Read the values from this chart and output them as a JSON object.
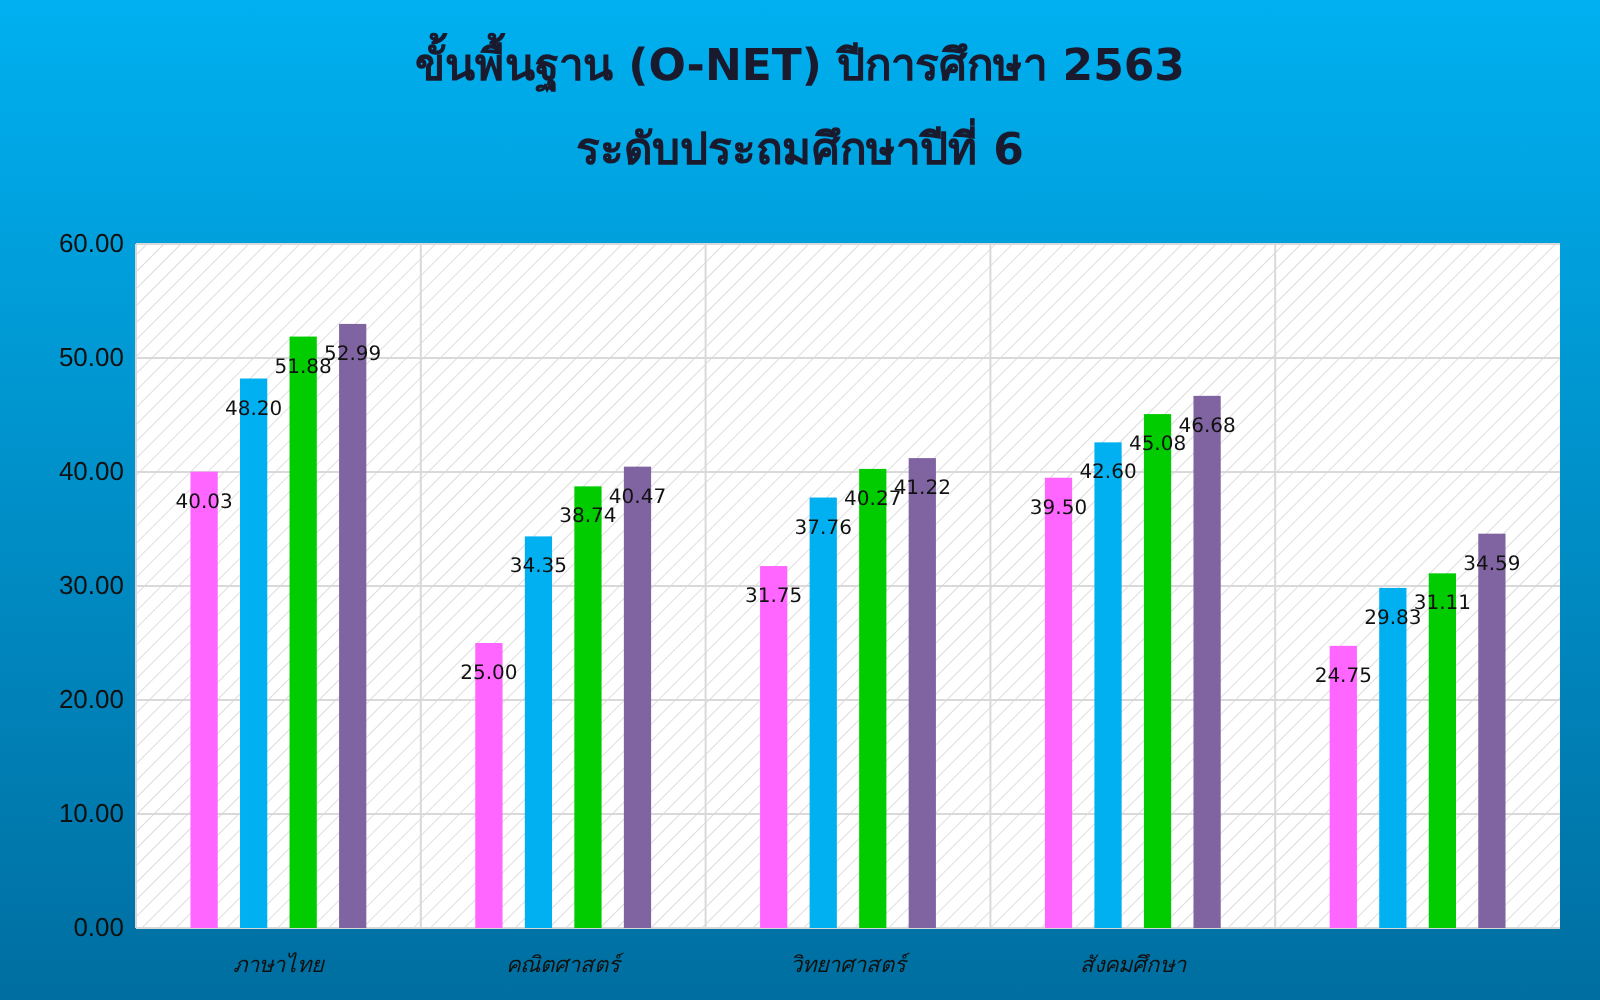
{
  "chart_data": {
    "type": "bar",
    "title": "ขั้นพื้นฐาน (O-NET) ปีการศึกษา 2563",
    "subtitle": "ระดับประถมศึกษาปีที่ 6",
    "categories": [
      "ภาษาไทย",
      "คณิตศาสตร์",
      "วิทยาศาสตร์",
      "สังคมศึกษา",
      null
    ],
    "series": [
      {
        "color": "#ff66ff",
        "values": [
          40.03,
          25.0,
          31.75,
          39.5,
          24.75
        ],
        "value_labels": [
          "40.03",
          "25.00",
          "31.75",
          "39.50",
          "24.75"
        ]
      },
      {
        "color": "#00b0f0",
        "values": [
          48.2,
          34.35,
          37.76,
          42.6,
          29.83
        ],
        "value_labels": [
          "48.20",
          "34.35",
          "37.76",
          "42.60",
          "29.83"
        ]
      },
      {
        "color": "#00cc00",
        "values": [
          51.88,
          38.74,
          40.27,
          45.08,
          31.11
        ],
        "value_labels": [
          "51.88",
          "38.74",
          "40.27",
          "45.08",
          "31.11"
        ]
      },
      {
        "color": "#8064a2",
        "values": [
          52.99,
          40.47,
          41.22,
          46.68,
          34.59
        ],
        "value_labels": [
          "52.99",
          "40.47",
          "41.22",
          "46.68",
          "34.59"
        ]
      }
    ],
    "ylim": [
      0,
      60
    ],
    "yticks": [
      {
        "value": 0,
        "label": "0.00"
      },
      {
        "value": 10,
        "label": "10.00"
      },
      {
        "value": 20,
        "label": "20.00"
      },
      {
        "value": 30,
        "label": "30.00"
      },
      {
        "value": 40,
        "label": "40.00"
      },
      {
        "value": 50,
        "label": "50.00"
      },
      {
        "value": 60,
        "label": "60.00"
      }
    ],
    "grid": true
  }
}
